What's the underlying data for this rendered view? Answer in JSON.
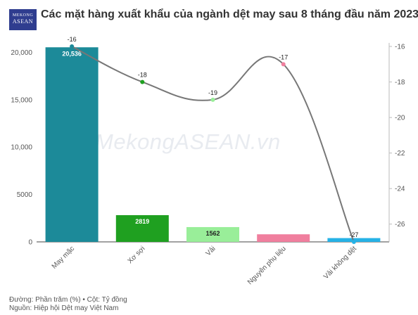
{
  "logo": {
    "top": "MEKONG",
    "bottom": "ASEAN"
  },
  "title": "Các mặt hàng xuất khẩu của ngành dệt may sau 8 tháng đầu năm 2023",
  "watermark": "MekongASEAN.vn",
  "footer": {
    "line1": "Đường: Phần trăm (%) • Cột: Tỷ đồng",
    "line2": "Nguồn: Hiệp hội Dệt may Việt Nam"
  },
  "chart_data": {
    "type": "bar",
    "categories": [
      "May mặc",
      "Xơ sợi",
      "Vải",
      "Nguyên phụ liệu",
      "Vải không dệt"
    ],
    "bar_series": {
      "unit": "Tỷ đồng",
      "values": [
        20536,
        2819,
        1562,
        800,
        400
      ],
      "labels": [
        "20,536",
        "2819",
        "1562",
        "",
        ""
      ],
      "colors": [
        "#1c8a99",
        "#1fa020",
        "#99ee99",
        "#f07f9e",
        "#26b2e6"
      ]
    },
    "line_series": {
      "unit": "Phần trăm (%)",
      "values": [
        -16,
        -18,
        -19,
        -17,
        -27
      ],
      "labels": [
        "-16",
        "-18",
        "-19",
        "-17",
        "-27"
      ],
      "marker_colors": [
        "#1c8a99",
        "#1fa020",
        "#99ee99",
        "#f07f9e",
        "#26b2e6"
      ],
      "line_color": "#777777"
    },
    "y_left": {
      "min": 0,
      "max": 21000,
      "ticks": [
        0,
        5000,
        10000,
        15000,
        20000
      ],
      "tick_labels": [
        "0",
        "5000",
        "10,000",
        "15,000",
        "20,000"
      ]
    },
    "y_right": {
      "min": -27,
      "max": -15.8,
      "ticks": [
        -16,
        -18,
        -20,
        -22,
        -24,
        -26
      ],
      "tick_labels": [
        "-16",
        "-18",
        "-20",
        "-22",
        "-24",
        "-26"
      ]
    },
    "legend": "none",
    "grid": false
  }
}
